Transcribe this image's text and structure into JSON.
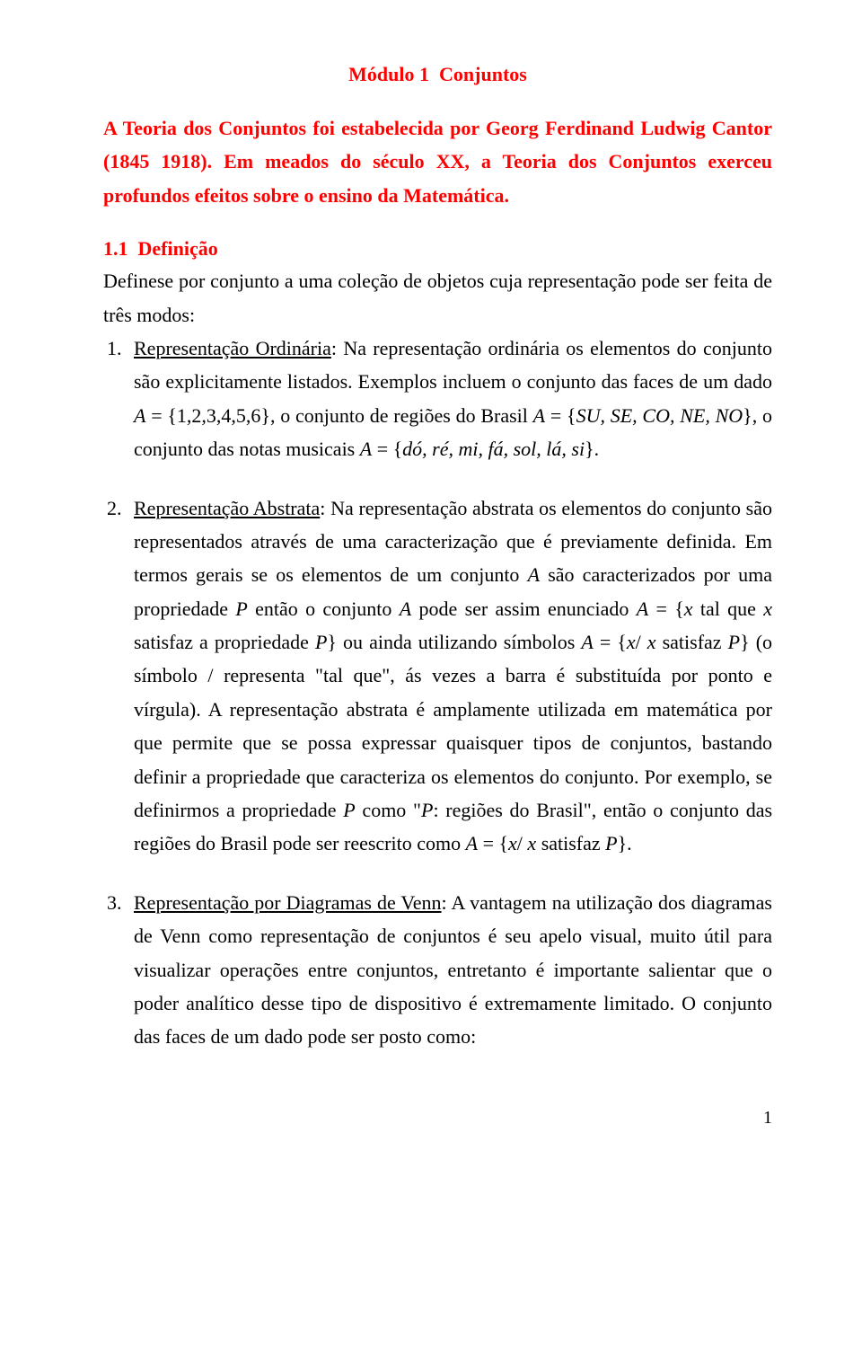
{
  "colors": {
    "text": "#000000",
    "background": "#ffffff",
    "accent_red": "#ff0000"
  },
  "typography": {
    "family": "Times New Roman",
    "body_size_pt": 16,
    "line_height": 1.7
  },
  "title": "Módulo 1 ­ Conjuntos",
  "intro": {
    "line1": "A Teoria dos Conjuntos foi estabelecida por Georg Ferdinand Ludwig Cantor (1845 1918). Em meados do século XX, a Teoria dos Conjuntos exerceu profundos efeitos sobre o ensino da Matemática."
  },
  "section_head": "1.1 ­ Definição",
  "def_intro": "Define­se por conjunto a uma coleção de objetos cuja representação pode ser feita de três modos:",
  "items": {
    "i1": {
      "num": "1.",
      "head": "Representação Ordinária",
      "tail1": ": Na representação ordinária os elementos do conjunto são explicitamente listados. Exemplos incluem o conjunto das faces de um dado ",
      "eq1_lhs": "A",
      "eq1_rhs": " = {1,2,3,4,5,6}",
      "tail2": ", o conjunto de regiões do Brasil ",
      "eq2_lhs": "A",
      "eq2_rhs": " = {",
      "eq2_body": "SU, SE, CO, NE, NO",
      "eq2_close": "}",
      "tail3": ", o conjunto das notas musicais ",
      "eq3_lhs": "A",
      "eq3_rhs": " = {",
      "eq3_body": "dó, ré, mi, fá, sol, lá, si",
      "eq3_close": "}",
      "period": "."
    },
    "i2": {
      "num": "2.",
      "head": "Representação Abstrata",
      "tail1": ": Na representação abstrata os elementos do conjunto são representados através de uma caracterização que é previamente definida. Em termos gerais se os elementos de um conjunto ",
      "A1": "A",
      "tail2": " são caracterizados por uma propriedade ",
      "P1": "P",
      "tail3": " então o conjunto ",
      "A2": "A",
      "tail4": " pode ser assim enunciado ",
      "eq1_lhs": "A",
      "eq1_open": " = {",
      "eq1_x1": "x",
      "eq1_mid1": " tal que ",
      "eq1_x2": "x",
      "eq1_mid2": " satisfaz a propriedade ",
      "eq1_P": "P",
      "eq1_close": "}",
      "tail5": " ou ainda utilizando símbolos ",
      "eq2_lhs": "A",
      "eq2_open": " = {",
      "eq2_x1": "x",
      "eq2_slash": "/ ",
      "eq2_x2": "x",
      "eq2_mid": " satisfaz ",
      "eq2_P": "P",
      "eq2_close": "}",
      "tail6": " (o símbolo / representa \"tal que\", ás vezes a barra é substituída por ponto e vírgula). A representação abstrata é amplamente utilizada em matemática por que permite que se possa expressar quaisquer tipos de conjuntos, bastando definir a propriedade que caracteriza os elementos do conjunto. Por exemplo, se definirmos a propriedade ",
      "P2": "P",
      "tail7": " como \"",
      "P3": "P",
      "tail8": ": regiões do Brasil\", então o conjunto das regiões do Brasil pode ser reescrito como ",
      "eq3_lhs": "A",
      "eq3_open": " = {",
      "eq3_x1": "x",
      "eq3_slash": "/ ",
      "eq3_x2": "x",
      "eq3_mid": " satisfaz ",
      "eq3_P": "P",
      "eq3_close": "}",
      "period": "."
    },
    "i3": {
      "num": "3.",
      "head": "Representação por Diagramas de Venn",
      "tail": ": A vantagem na utilização dos diagramas de Venn como representação de conjuntos é seu apelo visual, muito útil para visualizar operações entre conjuntos, entretanto é importante salientar que o poder analítico desse tipo de dispositivo é extremamente limitado. O conjunto das faces de um dado pode ser posto como:"
    }
  },
  "page_number": "1"
}
